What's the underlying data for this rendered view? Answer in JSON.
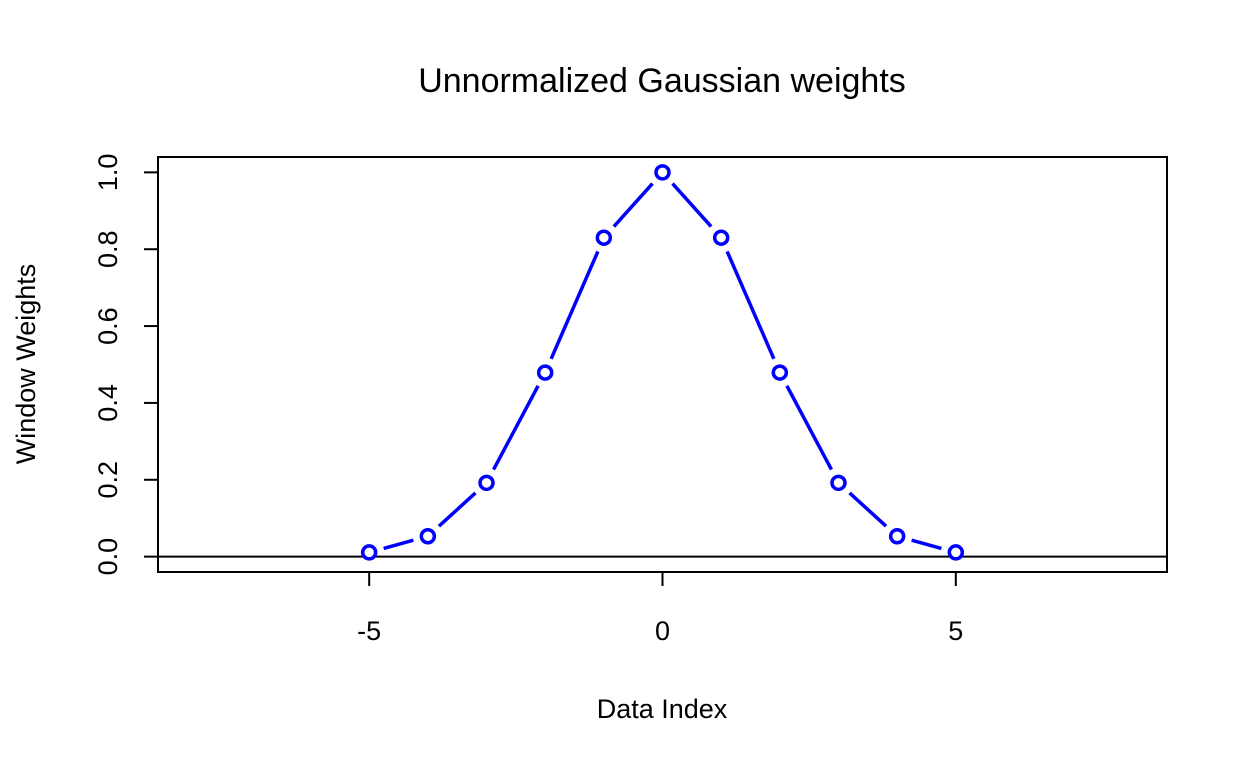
{
  "chart_data": {
    "type": "line",
    "title": "Unnormalized Gaussian weights",
    "xlabel": "Data Index",
    "ylabel": "Window Weights",
    "xlim": [
      -8.6,
      8.6
    ],
    "ylim": [
      -0.04,
      1.04
    ],
    "x_ticks": [
      -5,
      0,
      5
    ],
    "x_tick_labels": [
      "-5",
      "0",
      "5"
    ],
    "y_ticks": [
      0.0,
      0.2,
      0.4,
      0.6,
      0.8,
      1.0
    ],
    "y_tick_labels": [
      "0.0",
      "0.2",
      "0.4",
      "0.6",
      "0.8",
      "1.0"
    ],
    "reference_line": 0,
    "grid": false,
    "series": [
      {
        "color": "#0000ff",
        "marker": "open-circle",
        "x": [
          -5,
          -4,
          -3,
          -2,
          -1,
          0,
          1,
          2,
          3,
          4,
          5
        ],
        "y": [
          0.011,
          0.053,
          0.192,
          0.479,
          0.83,
          1.0,
          0.83,
          0.479,
          0.192,
          0.053,
          0.011
        ]
      }
    ]
  }
}
